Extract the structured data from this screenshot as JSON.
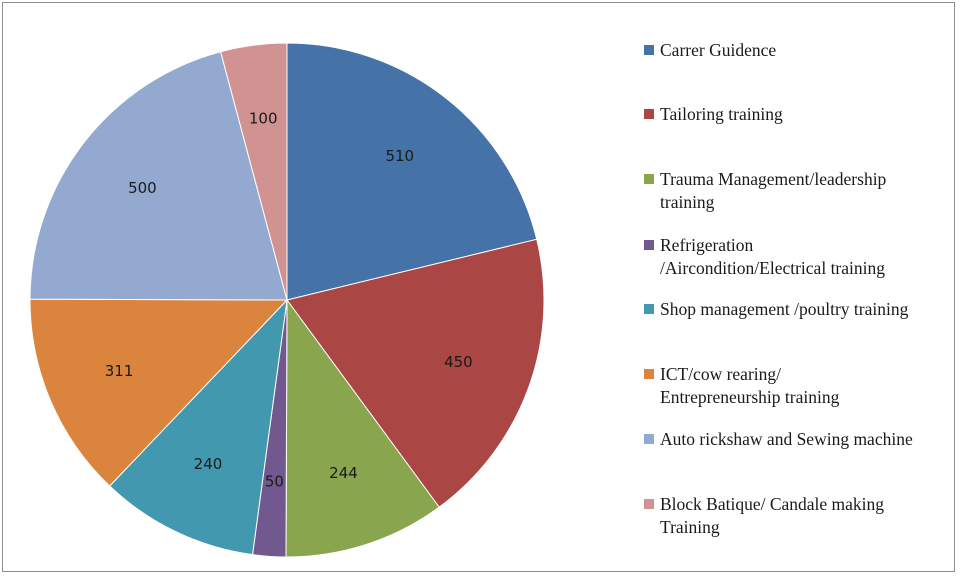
{
  "chart_data": {
    "type": "pie",
    "title": "",
    "start_angle_deg": 0,
    "direction": "clockwise",
    "legend_position": "right",
    "slices": [
      {
        "label": "Carrer Guidence",
        "value": 510,
        "color": "#4572a7"
      },
      {
        "label": "Tailoring training",
        "value": 450,
        "color": "#aa4643"
      },
      {
        "label": "Trauma Management/leadership\ntraining",
        "value": 244,
        "color": "#89a54e"
      },
      {
        "label": "Refrigeration\n/Aircondition/Electrical training",
        "value": 50,
        "color": "#71588f"
      },
      {
        "label": "Shop management /poultry training",
        "value": 240,
        "color": "#4198af"
      },
      {
        "label": "ICT/cow rearing/\nEntrepreneurship training",
        "value": 311,
        "color": "#db843d"
      },
      {
        "label": "Auto rickshaw and Sewing machine",
        "value": 500,
        "color": "#93a9cf"
      },
      {
        "label": "Block Batique/ Candale making\nTraining",
        "value": 100,
        "color": "#d19392"
      }
    ]
  }
}
